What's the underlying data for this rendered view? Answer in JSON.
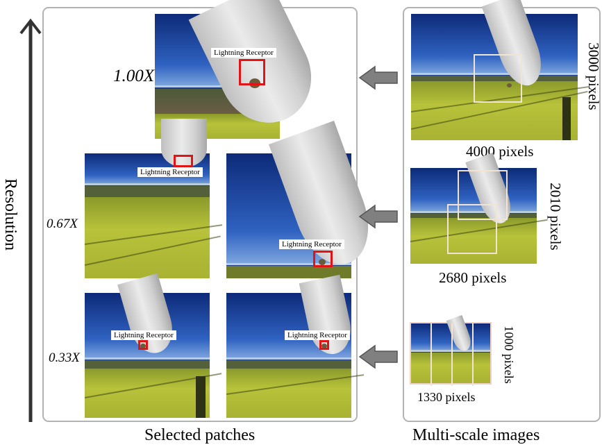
{
  "axis": {
    "label": "Resolution"
  },
  "left_panel": {
    "caption": "Selected patches",
    "scales": [
      "1.00X",
      "0.67X",
      "0.33X"
    ],
    "receptor_label": "Lightning Receptor"
  },
  "right_panel": {
    "caption": "Multi-scale images",
    "images": [
      {
        "width_label": "4000 pixels",
        "height_label": "3000 pixels"
      },
      {
        "width_label": "2680 pixels",
        "height_label": "2010 pixels"
      },
      {
        "width_label": "1330 pixels",
        "height_label": "1000 pixels"
      }
    ]
  },
  "colors": {
    "frame": "#b3b3b3",
    "receptor_box": "#e01414",
    "patch_box": "#f2e4d0",
    "arrow": "#808080"
  }
}
